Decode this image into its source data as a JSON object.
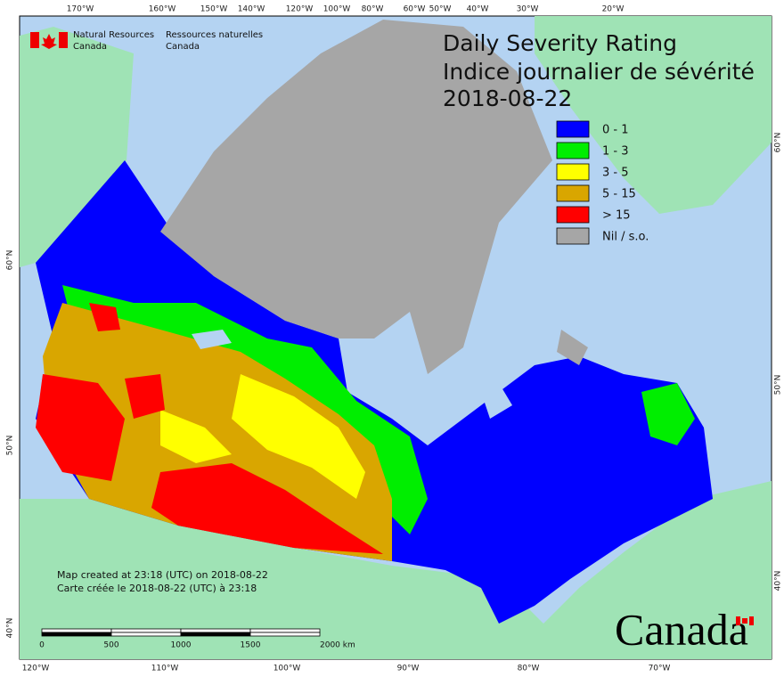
{
  "department": {
    "en": [
      "Natural Resources",
      "Canada"
    ],
    "fr": [
      "Ressources naturelles",
      "Canada"
    ]
  },
  "title": [
    "Daily Severity Rating",
    "Indice journalier de sévérité",
    "2018-08-22"
  ],
  "legend": [
    {
      "label": "0 - 1",
      "color": "#0000ff"
    },
    {
      "label": "1 - 3",
      "color": "#00ee00"
    },
    {
      "label": "3 - 5",
      "color": "#ffff00"
    },
    {
      "label": "5 - 15",
      "color": "#d9a600"
    },
    {
      "label": "> 15",
      "color": "#ff0000"
    },
    {
      "label": "Nil / s.o.",
      "color": "#a6a6a6"
    }
  ],
  "notes": [
    "Map created at 23:18 (UTC) on 2018-08-22",
    "Carte créée le 2018-08-22 (UTC) à 23:18"
  ],
  "scale_bar": [
    "0",
    "500",
    "1000",
    "1500",
    "2000 km"
  ],
  "graticule": {
    "top": [
      "170°W",
      "160°W",
      "150°W",
      "140°W",
      "120°W",
      "100°W",
      "80°W",
      "60°W",
      "50°W",
      "40°W",
      "30°W",
      "20°W"
    ],
    "bottom": [
      "120°W",
      "110°W",
      "100°W",
      "90°W",
      "80°W",
      "70°W"
    ],
    "left": [
      "60°N",
      "50°N",
      "40°N"
    ],
    "right": [
      "60°N",
      "50°N",
      "40°N"
    ]
  },
  "wordmark": "Canada"
}
